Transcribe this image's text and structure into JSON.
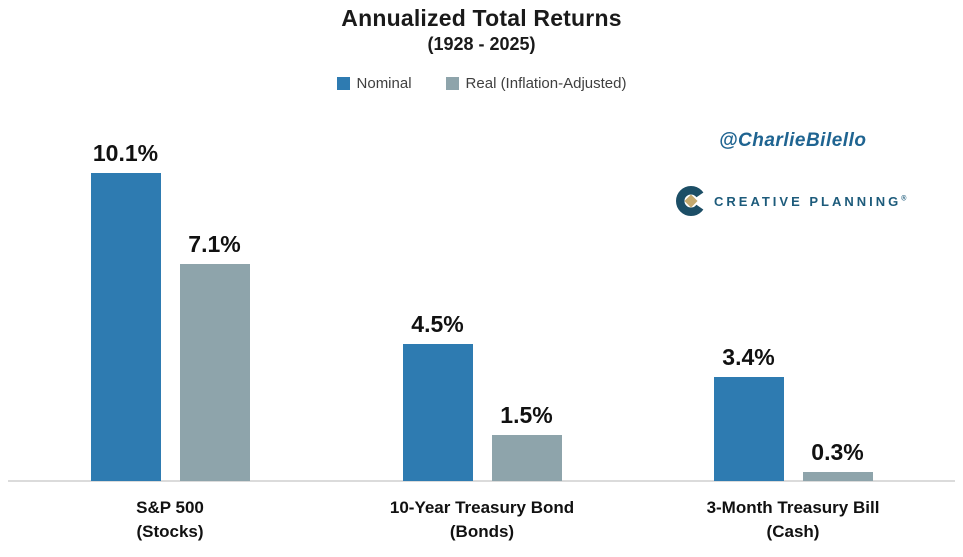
{
  "chart": {
    "title": "Annualized Total Returns",
    "subtitle": "(1928 - 2025)"
  },
  "branding": {
    "handle": "@CharlieBilello",
    "logo_text": "CREATIVE PLANNING",
    "logo_mark": "®"
  },
  "colors": {
    "nominal_blue": "#2E7BB1",
    "real_gray": "#8EA4AB",
    "handle_blue": "#1F6491",
    "logo_blue": "#1D5B7B",
    "logo_gold": "#C4A96E",
    "axis_line": "#DBDBDB"
  },
  "chart_data": {
    "type": "bar",
    "title": "Annualized Total Returns",
    "subtitle": "(1928 - 2025)",
    "categories": [
      {
        "line1": "S&P 500",
        "line2": "(Stocks)"
      },
      {
        "line1": "10-Year Treasury Bond",
        "line2": "(Bonds)"
      },
      {
        "line1": "3-Month Treasury Bill",
        "line2": "(Cash)"
      }
    ],
    "series": [
      {
        "name": "Nominal",
        "color": "#2E7BB1",
        "values": [
          10.1,
          4.5,
          3.4
        ],
        "labels": [
          "10.1%",
          "4.5%",
          "3.4%"
        ]
      },
      {
        "name": "Real (Inflation-Adjusted)",
        "color": "#8EA4AB",
        "values": [
          7.1,
          1.5,
          0.3
        ],
        "labels": [
          "7.1%",
          "1.5%",
          "0.3%"
        ]
      }
    ],
    "ylim": [
      0,
      11
    ],
    "grid": false,
    "legend_position": "top",
    "value_labels_shown": true,
    "y_axis_shown": false
  }
}
